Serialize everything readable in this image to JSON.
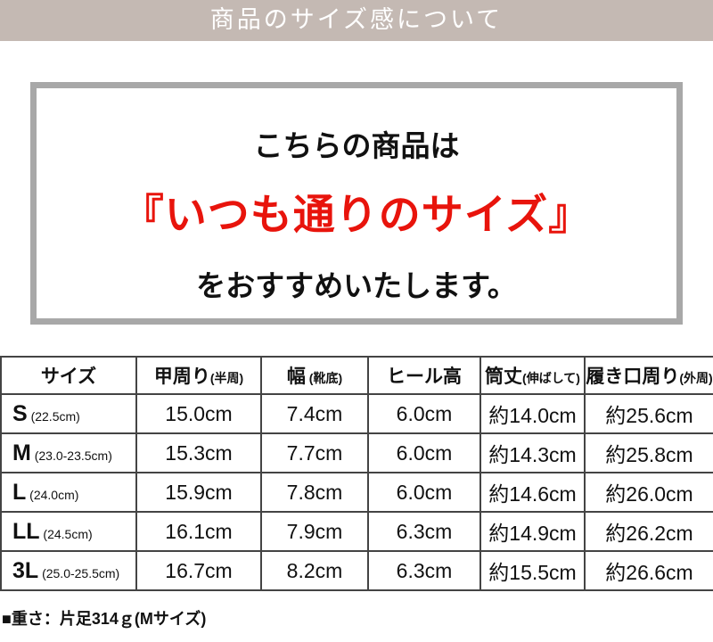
{
  "header": {
    "title": "商品のサイズ感について"
  },
  "notice": {
    "line1": "こちらの商品は",
    "line2": "『いつも通りのサイズ』",
    "line3": "をおすすめいたします。",
    "accent_color": "#e8140c"
  },
  "table": {
    "headers": [
      {
        "main": "サイズ",
        "sub": ""
      },
      {
        "main": "甲周り",
        "sub": "(半周)"
      },
      {
        "main": "幅",
        "sub": " (靴底)"
      },
      {
        "main": "ヒール高",
        "sub": ""
      },
      {
        "main": "筒丈",
        "sub": "(伸ばして)"
      },
      {
        "main": "履き口周り",
        "sub": "(外周)"
      }
    ],
    "rows": [
      {
        "size": "S",
        "range": " (22.5cm)",
        "cells": [
          "15.0cm",
          "7.4cm",
          "6.0cm",
          "約14.0cm",
          "約25.6cm"
        ]
      },
      {
        "size": "M",
        "range": " (23.0-23.5cm)",
        "cells": [
          "15.3cm",
          "7.7cm",
          "6.0cm",
          "約14.3cm",
          "約25.8cm"
        ]
      },
      {
        "size": "L",
        "range": " (24.0cm)",
        "cells": [
          "15.9cm",
          "7.8cm",
          "6.0cm",
          "約14.6cm",
          "約26.0cm"
        ]
      },
      {
        "size": "LL",
        "range": " (24.5cm)",
        "cells": [
          "16.1cm",
          "7.9cm",
          "6.3cm",
          "約14.9cm",
          "約26.2cm"
        ]
      },
      {
        "size": "3L",
        "range": " (25.0-25.5cm)",
        "cells": [
          "16.7cm",
          "8.2cm",
          "6.3cm",
          "約15.5cm",
          "約26.6cm"
        ]
      }
    ]
  },
  "weight": "■重さ：片足314ｇ(Mサイズ)"
}
